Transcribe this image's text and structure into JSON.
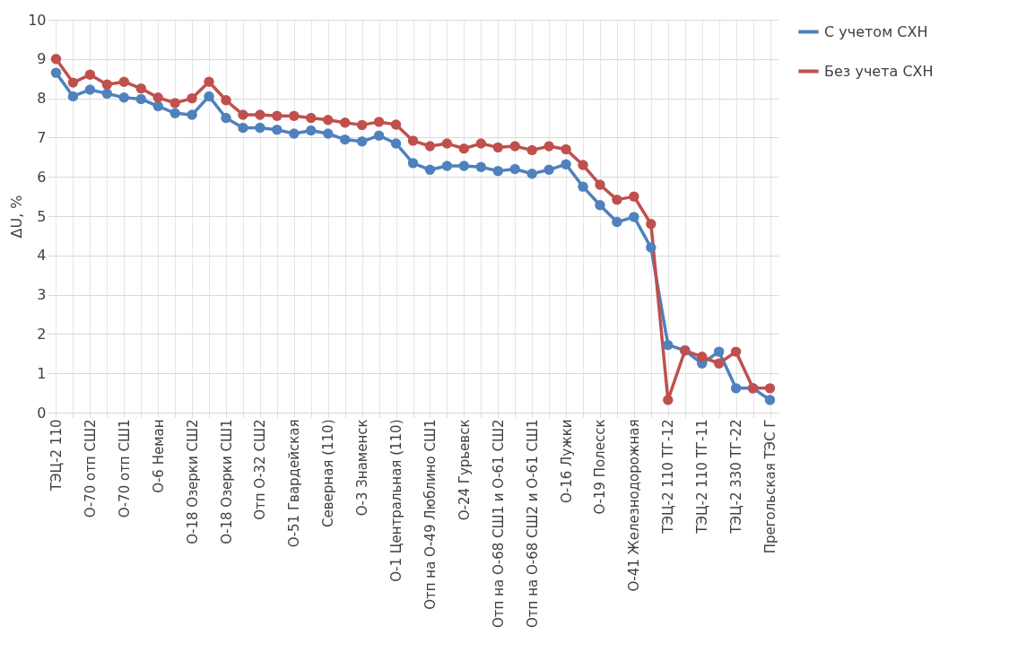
{
  "chart_data": {
    "type": "line",
    "ylabel": "ΔU, %",
    "categories": [
      "ТЭЦ-2 110",
      null,
      "О-70 отп СШ2",
      null,
      "О-70 отп СШ1",
      null,
      "О-6 Неман",
      null,
      "О-18 Озерки СШ2",
      null,
      "О-18 Озерки СШ1",
      null,
      "Отп О-32 СШ2",
      null,
      "О-51 Гвардейская",
      null,
      "Северная (110)",
      null,
      "О-3 Знаменск",
      null,
      "О-1 Центральная (110)",
      null,
      "Отп на О-49 Люблино СШ1",
      null,
      "О-24 Гурьевск",
      null,
      "Отп на О-68 СШ1 и О-61 СШ2",
      null,
      "Отп на О-68 СШ2 и О-61 СШ1",
      null,
      "О-16 Лужки",
      null,
      "О-19 Полесск",
      null,
      "О-41 Железнодорожная",
      null,
      "ТЭЦ-2 110 ТГ-12",
      null,
      "ТЭЦ-2 110 ТГ-11",
      null,
      "ТЭЦ-2 330 ТГ-22",
      null,
      "Прегольская ТЭС Г"
    ],
    "series": [
      {
        "name": "С учетом СХН",
        "color": "#4f81bd",
        "values": [
          8.65,
          8.05,
          8.22,
          8.12,
          8.02,
          7.98,
          7.8,
          7.62,
          7.58,
          8.05,
          7.5,
          7.25,
          7.25,
          7.2,
          7.1,
          7.18,
          7.1,
          6.95,
          6.9,
          7.05,
          6.85,
          6.35,
          6.18,
          6.28,
          6.28,
          6.25,
          6.15,
          6.2,
          6.08,
          6.18,
          6.32,
          5.75,
          5.28,
          4.85,
          4.98,
          4.2,
          1.72,
          1.58,
          1.25,
          1.55,
          0.62,
          0.62,
          0.32
        ]
      },
      {
        "name": "Без учета СХН",
        "color": "#c0504d",
        "values": [
          9.0,
          8.4,
          8.6,
          8.35,
          8.42,
          8.25,
          8.02,
          7.88,
          8.0,
          8.42,
          7.95,
          7.58,
          7.58,
          7.55,
          7.55,
          7.5,
          7.45,
          7.38,
          7.32,
          7.4,
          7.33,
          6.92,
          6.78,
          6.85,
          6.72,
          6.85,
          6.75,
          6.78,
          6.68,
          6.78,
          6.7,
          6.3,
          5.8,
          5.42,
          5.5,
          4.8,
          0.32,
          1.58,
          1.42,
          1.25,
          1.55,
          0.62,
          0.62
        ]
      }
    ],
    "ylim": [
      0,
      10
    ],
    "yticks": [
      0,
      1,
      2,
      3,
      4,
      5,
      6,
      7,
      8,
      9,
      10
    ],
    "grid": true,
    "legend": "right",
    "marker": "circle",
    "line_style": "solid"
  }
}
